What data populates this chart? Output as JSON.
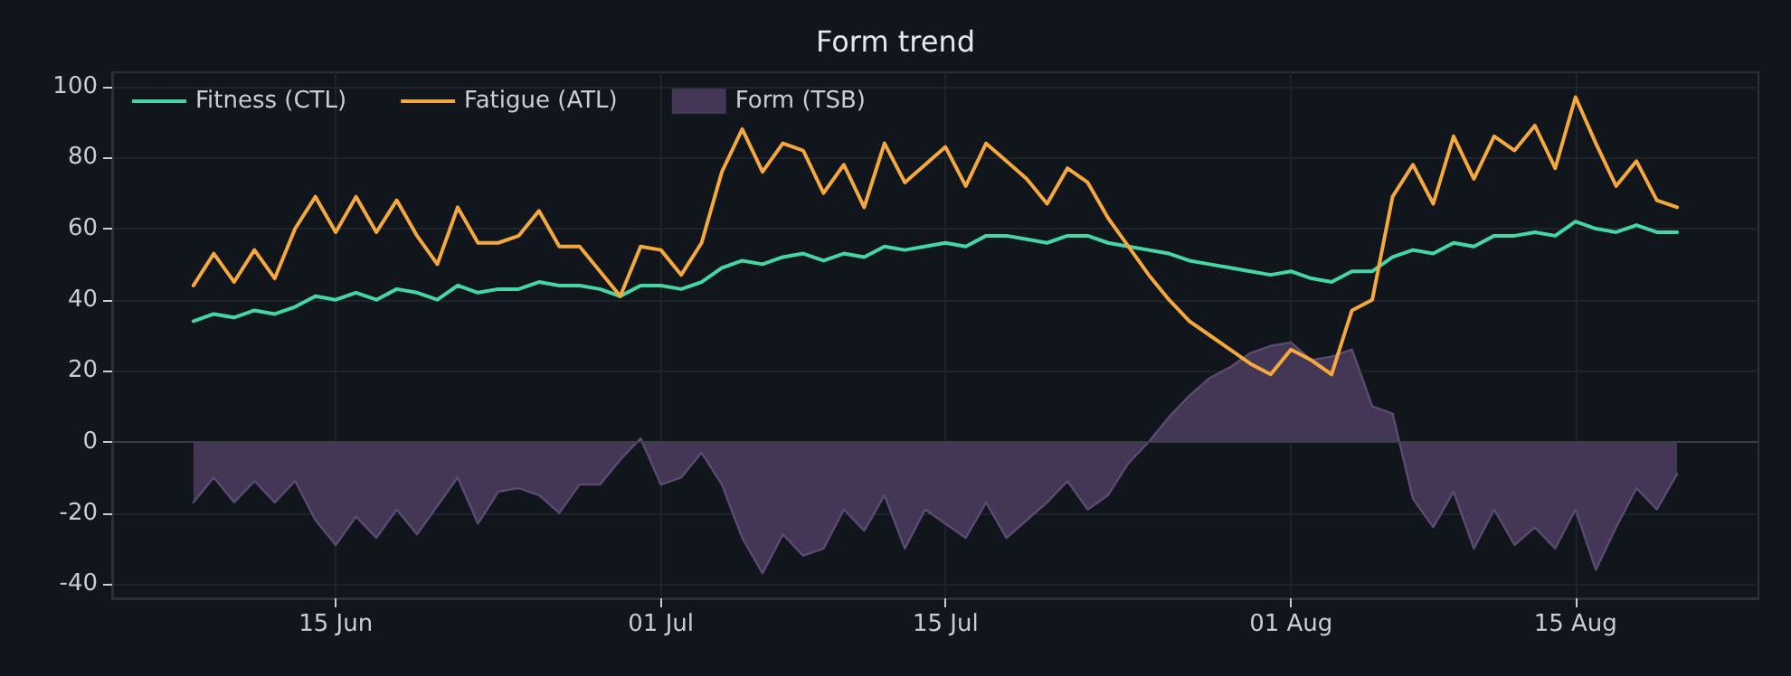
{
  "chart_data": {
    "type": "line",
    "title": "Form trend",
    "x": [
      "--06-08",
      "--06-09",
      "--06-10",
      "--06-11",
      "--06-12",
      "--06-13",
      "--06-14",
      "--06-15",
      "--06-16",
      "--06-17",
      "--06-18",
      "--06-19",
      "--06-20",
      "--06-21",
      "--06-22",
      "--06-23",
      "--06-24",
      "--06-25",
      "--06-26",
      "--06-27",
      "--06-28",
      "--06-29",
      "--06-30",
      "--07-01",
      "--07-02",
      "--07-03",
      "--07-04",
      "--07-05",
      "--07-06",
      "--07-07",
      "--07-08",
      "--07-09",
      "--07-10",
      "--07-11",
      "--07-12",
      "--07-13",
      "--07-14",
      "--07-15",
      "--07-16",
      "--07-17",
      "--07-18",
      "--07-19",
      "--07-20",
      "--07-21",
      "--07-22",
      "--07-23",
      "--07-24",
      "--07-25",
      "--07-26",
      "--07-27",
      "--07-28",
      "--07-29",
      "--07-30",
      "--07-31",
      "--08-01",
      "--08-02",
      "--08-03",
      "--08-04",
      "--08-05",
      "--08-06",
      "--08-07",
      "--08-08",
      "--08-09",
      "--08-10",
      "--08-11",
      "--08-12",
      "--08-13",
      "--08-14",
      "--08-15",
      "--08-16",
      "--08-17",
      "--08-18",
      "--08-19",
      "--08-20"
    ],
    "series": [
      {
        "name": "Fitness (CTL)",
        "color": "#45d6a6",
        "values": [
          34,
          36,
          35,
          37,
          36,
          38,
          41,
          40,
          42,
          40,
          43,
          42,
          40,
          44,
          42,
          43,
          43,
          45,
          44,
          44,
          43,
          41,
          44,
          44,
          43,
          45,
          49,
          51,
          50,
          52,
          53,
          51,
          53,
          52,
          55,
          54,
          55,
          56,
          55,
          58,
          58,
          57,
          56,
          58,
          58,
          56,
          55,
          54,
          53,
          51,
          50,
          49,
          48,
          47,
          48,
          46,
          45,
          48,
          48,
          52,
          54,
          53,
          56,
          55,
          58,
          58,
          59,
          58,
          62,
          60,
          59,
          61,
          59,
          59
        ]
      },
      {
        "name": "Fatigue (ATL)",
        "color": "#f5a93c",
        "values": [
          44,
          53,
          45,
          54,
          46,
          60,
          69,
          59,
          69,
          59,
          68,
          58,
          50,
          66,
          56,
          56,
          58,
          65,
          55,
          55,
          48,
          41,
          55,
          54,
          47,
          56,
          76,
          88,
          76,
          84,
          82,
          70,
          78,
          66,
          84,
          73,
          78,
          83,
          72,
          84,
          79,
          74,
          67,
          77,
          73,
          63,
          55,
          47,
          40,
          34,
          30,
          26,
          22,
          19,
          26,
          23,
          19,
          37,
          40,
          69,
          78,
          67,
          86,
          74,
          86,
          82,
          89,
          77,
          97,
          84,
          72,
          79,
          68,
          66
        ]
      },
      {
        "name": "Form (TSB)",
        "type": "area",
        "color": "#433755",
        "values": [
          -17,
          -10,
          -17,
          -11,
          -17,
          -11,
          -22,
          -29,
          -21,
          -27,
          -19,
          -26,
          -18,
          -10,
          -23,
          -14,
          -13,
          -15,
          -20,
          -12,
          -12,
          -5,
          1,
          -12,
          -10,
          -3,
          -12,
          -27,
          -37,
          -26,
          -32,
          -30,
          -19,
          -25,
          -15,
          -30,
          -19,
          -23,
          -27,
          -17,
          -27,
          -22,
          -17,
          -11,
          -19,
          -15,
          -6,
          0,
          7,
          13,
          18,
          21,
          25,
          27,
          28,
          23,
          24,
          26,
          10,
          8,
          -16,
          -24,
          -14,
          -30,
          -19,
          -29,
          -24,
          -30,
          -19,
          -36,
          -24,
          -13,
          -19,
          -9
        ]
      }
    ],
    "xlim": [
      "--06-04",
      "--08-24"
    ],
    "xticks": [
      {
        "value": "--06-15",
        "label": "15 Jun"
      },
      {
        "value": "--07-01",
        "label": "01 Jul"
      },
      {
        "value": "--07-15",
        "label": "15 Jul"
      },
      {
        "value": "--08-01",
        "label": "01 Aug"
      },
      {
        "value": "--08-15",
        "label": "15 Aug"
      }
    ],
    "ylim": [
      -44,
      104
    ],
    "yticks": [
      -40,
      -20,
      0,
      20,
      40,
      60,
      80,
      100
    ],
    "ref_lines": [
      {
        "axis": "y",
        "value": 0,
        "label": null,
        "color": "#3a3f48"
      }
    ],
    "grid": true,
    "legend": "top left",
    "marker": "none",
    "line_style": "solid"
  }
}
